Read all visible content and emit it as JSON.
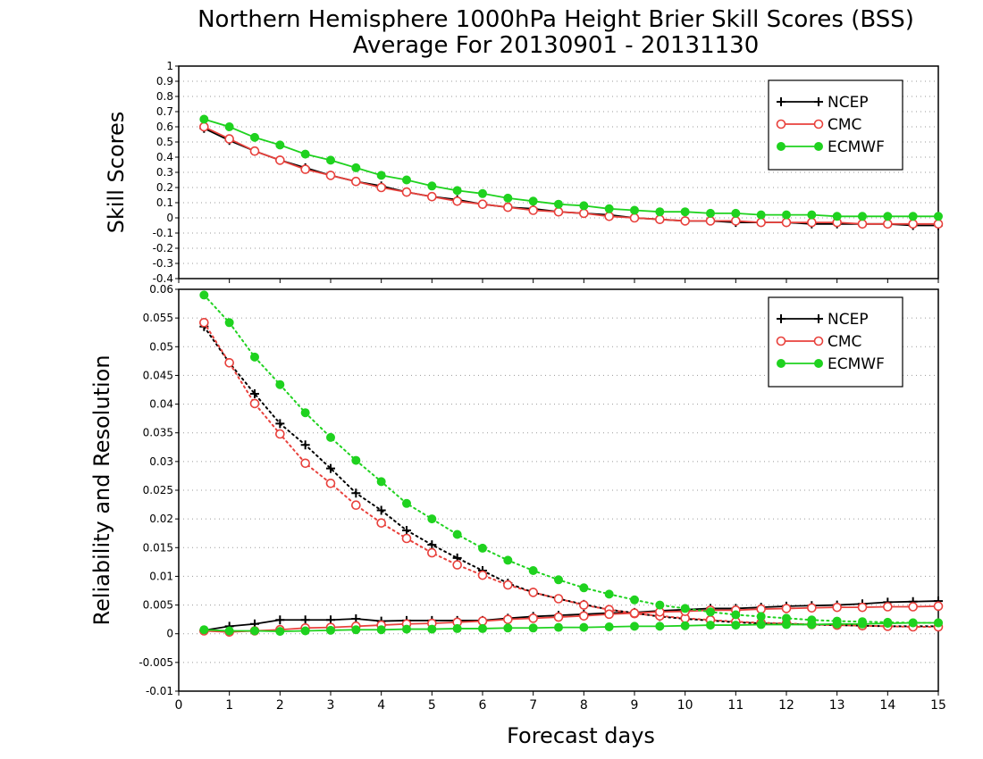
{
  "header": {
    "title": "Northern Hemisphere 1000hPa Height Brier Skill Scores (BSS)",
    "subtitle": "Average For 20130901 - 20131130"
  },
  "colors": {
    "NCEP": "#000000",
    "CMC": "#e8413c",
    "ECMWF": "#1fd21f",
    "grid": "#9a9a9a"
  },
  "chart_data": [
    {
      "type": "line",
      "panel": "top",
      "title": "Northern Hemisphere 1000hPa Height Brier Skill Scores (BSS)",
      "ylabel": "Skill Scores",
      "xlabel": "",
      "xlim": [
        0,
        15
      ],
      "ylim": [
        -0.4,
        1
      ],
      "x_ticks": [
        "0",
        "1",
        "2",
        "3",
        "4",
        "5",
        "6",
        "7",
        "8",
        "9",
        "10",
        "11",
        "12",
        "13",
        "14",
        "15"
      ],
      "y_ticks": [
        "-0.4",
        "-0.3",
        "-0.2",
        "-0.1",
        "0",
        "0.1",
        "0.2",
        "0.3",
        "0.4",
        "0.5",
        "0.6",
        "0.7",
        "0.8",
        "0.9",
        "1"
      ],
      "grid": "horizontal dotted",
      "legend": {
        "position": "top-right",
        "entries": [
          "NCEP",
          "CMC",
          "ECMWF"
        ]
      },
      "x": [
        0.5,
        1,
        1.5,
        2,
        2.5,
        3,
        3.5,
        4,
        4.5,
        5,
        5.5,
        6,
        6.5,
        7,
        7.5,
        8,
        8.5,
        9,
        9.5,
        10,
        10.5,
        11,
        11.5,
        12,
        12.5,
        13,
        13.5,
        14,
        14.5,
        15
      ],
      "series": [
        {
          "name": "NCEP",
          "marker": "plus",
          "style": "solid",
          "values": [
            0.59,
            0.51,
            0.44,
            0.38,
            0.33,
            0.28,
            0.24,
            0.21,
            0.17,
            0.14,
            0.12,
            0.09,
            0.07,
            0.06,
            0.04,
            0.03,
            0.02,
            0.0,
            -0.01,
            -0.02,
            -0.02,
            -0.03,
            -0.03,
            -0.03,
            -0.04,
            -0.04,
            -0.04,
            -0.04,
            -0.05,
            -0.05
          ]
        },
        {
          "name": "CMC",
          "marker": "open-circle",
          "style": "solid",
          "values": [
            0.6,
            0.52,
            0.44,
            0.38,
            0.32,
            0.28,
            0.24,
            0.2,
            0.17,
            0.14,
            0.11,
            0.09,
            0.07,
            0.05,
            0.04,
            0.03,
            0.01,
            0.0,
            -0.01,
            -0.02,
            -0.02,
            -0.02,
            -0.03,
            -0.03,
            -0.03,
            -0.03,
            -0.04,
            -0.04,
            -0.04,
            -0.04
          ]
        },
        {
          "name": "ECMWF",
          "marker": "filled-circle",
          "style": "solid",
          "values": [
            0.65,
            0.6,
            0.53,
            0.48,
            0.42,
            0.38,
            0.33,
            0.28,
            0.25,
            0.21,
            0.18,
            0.16,
            0.13,
            0.11,
            0.09,
            0.08,
            0.06,
            0.05,
            0.04,
            0.04,
            0.03,
            0.03,
            0.02,
            0.02,
            0.02,
            0.01,
            0.01,
            0.01,
            0.01,
            0.01
          ]
        }
      ]
    },
    {
      "type": "line",
      "panel": "bottom",
      "ylabel": "Reliability and Resolution",
      "xlabel": "Forecast days",
      "xlim": [
        0,
        15
      ],
      "ylim": [
        -0.01,
        0.06
      ],
      "x_ticks": [
        "0",
        "1",
        "2",
        "3",
        "4",
        "5",
        "6",
        "7",
        "8",
        "9",
        "10",
        "11",
        "12",
        "13",
        "14",
        "15"
      ],
      "y_ticks": [
        "-0.01",
        "-0.005",
        "0",
        "0.005",
        "0.01",
        "0.015",
        "0.02",
        "0.025",
        "0.03",
        "0.035",
        "0.04",
        "0.045",
        "0.05",
        "0.055",
        "0.06"
      ],
      "grid": "horizontal dotted",
      "legend": {
        "position": "top-right",
        "entries": [
          "NCEP",
          "CMC",
          "ECMWF"
        ]
      },
      "x": [
        0.5,
        1,
        1.5,
        2,
        2.5,
        3,
        3.5,
        4,
        4.5,
        5,
        5.5,
        6,
        6.5,
        7,
        7.5,
        8,
        8.5,
        9,
        9.5,
        10,
        10.5,
        11,
        11.5,
        12,
        12.5,
        13,
        13.5,
        14,
        14.5,
        15
      ],
      "series": [
        {
          "name": "NCEP",
          "marker": "plus",
          "style": "dotted",
          "values": [
            0.0535,
            0.0472,
            0.0418,
            0.0366,
            0.0329,
            0.0288,
            0.0245,
            0.0215,
            0.018,
            0.0155,
            0.0132,
            0.011,
            0.0088,
            0.0072,
            0.0061,
            0.0051,
            0.0042,
            0.0036,
            0.003,
            0.0026,
            0.0023,
            0.002,
            0.0018,
            0.0017,
            0.0016,
            0.0015,
            0.0014,
            0.0013,
            0.0013,
            0.0013
          ]
        },
        {
          "name": "NCEP",
          "marker": "plus",
          "style": "solid",
          "values": [
            0.0006,
            0.0013,
            0.0017,
            0.0024,
            0.0024,
            0.0024,
            0.0026,
            0.0022,
            0.0023,
            0.0023,
            0.0023,
            0.0023,
            0.0027,
            0.003,
            0.0032,
            0.0034,
            0.0036,
            0.0037,
            0.004,
            0.0042,
            0.0044,
            0.0044,
            0.0046,
            0.0048,
            0.0049,
            0.005,
            0.0052,
            0.0055,
            0.0056,
            0.0057
          ]
        },
        {
          "name": "CMC",
          "marker": "open-circle",
          "style": "dotted",
          "values": [
            0.0542,
            0.0472,
            0.0401,
            0.0348,
            0.0297,
            0.0262,
            0.0224,
            0.0193,
            0.0166,
            0.0141,
            0.012,
            0.0102,
            0.0085,
            0.0072,
            0.0061,
            0.005,
            0.0042,
            0.0035,
            0.0031,
            0.0027,
            0.0024,
            0.0021,
            0.0019,
            0.0018,
            0.0016,
            0.0015,
            0.0014,
            0.0013,
            0.0012,
            0.0012
          ]
        },
        {
          "name": "CMC",
          "marker": "open-circle",
          "style": "solid",
          "values": [
            0.0005,
            0.0003,
            0.0005,
            0.0007,
            0.001,
            0.0011,
            0.0013,
            0.0015,
            0.0017,
            0.0018,
            0.002,
            0.0022,
            0.0025,
            0.0027,
            0.0029,
            0.0031,
            0.0034,
            0.0036,
            0.0038,
            0.0039,
            0.0041,
            0.0041,
            0.0043,
            0.0044,
            0.0045,
            0.0046,
            0.0046,
            0.0047,
            0.0047,
            0.0048
          ]
        },
        {
          "name": "ECMWF",
          "marker": "filled-circle",
          "style": "dotted",
          "values": [
            0.059,
            0.0542,
            0.0482,
            0.0434,
            0.0385,
            0.0342,
            0.0302,
            0.0265,
            0.0227,
            0.02,
            0.0173,
            0.0149,
            0.0128,
            0.011,
            0.0094,
            0.008,
            0.0069,
            0.0059,
            0.005,
            0.0044,
            0.0038,
            0.0033,
            0.003,
            0.0027,
            0.0024,
            0.0022,
            0.0021,
            0.002,
            0.0019,
            0.0019
          ]
        },
        {
          "name": "ECMWF",
          "marker": "filled-circle",
          "style": "solid",
          "values": [
            0.0007,
            0.0005,
            0.0005,
            0.0004,
            0.0005,
            0.0006,
            0.0007,
            0.0007,
            0.0008,
            0.0008,
            0.0009,
            0.0009,
            0.001,
            0.001,
            0.0011,
            0.0011,
            0.0012,
            0.0013,
            0.0013,
            0.0014,
            0.0015,
            0.0015,
            0.0016,
            0.0016,
            0.0016,
            0.0017,
            0.0017,
            0.0018,
            0.0019,
            0.0019
          ]
        }
      ]
    }
  ]
}
